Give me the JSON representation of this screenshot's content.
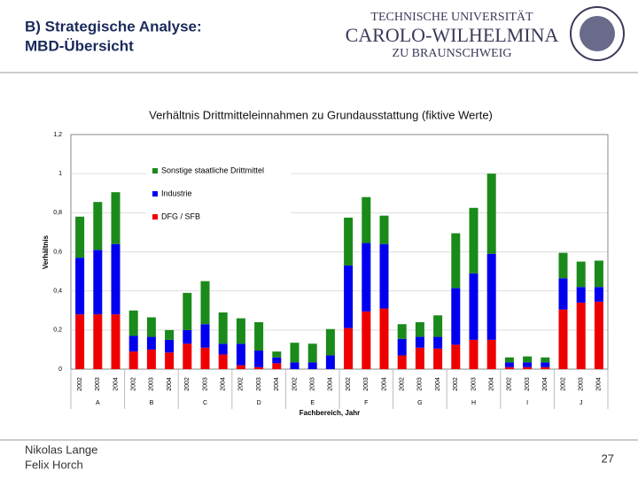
{
  "header": {
    "title": [
      "B) Strategische Analyse:",
      "MBD-Übersicht"
    ],
    "logo": [
      "TECHNISCHE UNIVERSITÄT",
      "CAROLO-WILHELMINA",
      "ZU BRAUNSCHWEIG"
    ]
  },
  "footer": {
    "authors": [
      "Nikolas Lange",
      "Felix Horch"
    ],
    "page": "27"
  },
  "chart_data": {
    "type": "stacked_bar",
    "title": "Verhältnis Drittmitteleinnahmen zu Grundausstattung (fiktive Werte)",
    "y_label": "Verhältnis",
    "x_label": "Fachbereich, Jahr",
    "groups": [
      "A",
      "B",
      "C",
      "D",
      "E",
      "F",
      "G",
      "H",
      "I",
      "J"
    ],
    "categories": [
      "2002",
      "2003",
      "2004",
      "2002",
      "2003",
      "2004",
      "2002",
      "2003",
      "2004",
      "2002",
      "2003",
      "2004",
      "2002",
      "2003",
      "2004",
      "2002",
      "2003",
      "2004",
      "2002",
      "2003",
      "2004",
      "2002",
      "2003",
      "2004",
      "2002",
      "2003",
      "2004",
      "2002",
      "2003",
      "2004"
    ],
    "series": [
      {
        "name": "DFG / SFB",
        "color": "#ee0000",
        "values": [
          0.28,
          0.28,
          0.28,
          0.09,
          0.1,
          0.085,
          0.13,
          0.11,
          0.075,
          0.02,
          0.01,
          0.03,
          0,
          0,
          0,
          0.21,
          0.295,
          0.31,
          0.07,
          0.11,
          0.105,
          0.125,
          0.15,
          0.15,
          0.01,
          0.01,
          0.01,
          0.305,
          0.34,
          0.345
        ]
      },
      {
        "name": "Industrie",
        "color": "#0000ee",
        "values": [
          0.29,
          0.33,
          0.36,
          0.08,
          0.065,
          0.065,
          0.07,
          0.12,
          0.055,
          0.11,
          0.085,
          0.03,
          0.035,
          0.035,
          0.07,
          0.32,
          0.35,
          0.33,
          0.085,
          0.055,
          0.06,
          0.29,
          0.34,
          0.44,
          0.025,
          0.025,
          0.025,
          0.16,
          0.08,
          0.075
        ]
      },
      {
        "name": "Sonstige staatliche Drittmittel",
        "color": "#1a8a1a",
        "values": [
          0.21,
          0.245,
          0.265,
          0.13,
          0.1,
          0.05,
          0.19,
          0.22,
          0.16,
          0.13,
          0.145,
          0.03,
          0.1,
          0.095,
          0.135,
          0.245,
          0.235,
          0.145,
          0.075,
          0.075,
          0.11,
          0.28,
          0.335,
          0.41,
          0.025,
          0.03,
          0.025,
          0.13,
          0.13,
          0.135
        ]
      }
    ],
    "ylim": [
      0,
      1.2
    ],
    "yticks": [
      0,
      {
        "value": 0.2,
        "label": "0,2"
      },
      {
        "value": 0.4,
        "label": "0,4"
      },
      {
        "value": 0.6,
        "label": "0,6"
      },
      {
        "value": 0.8,
        "label": "0,8"
      },
      1,
      {
        "value": 1.2,
        "label": "1,2"
      }
    ],
    "grid": true
  }
}
